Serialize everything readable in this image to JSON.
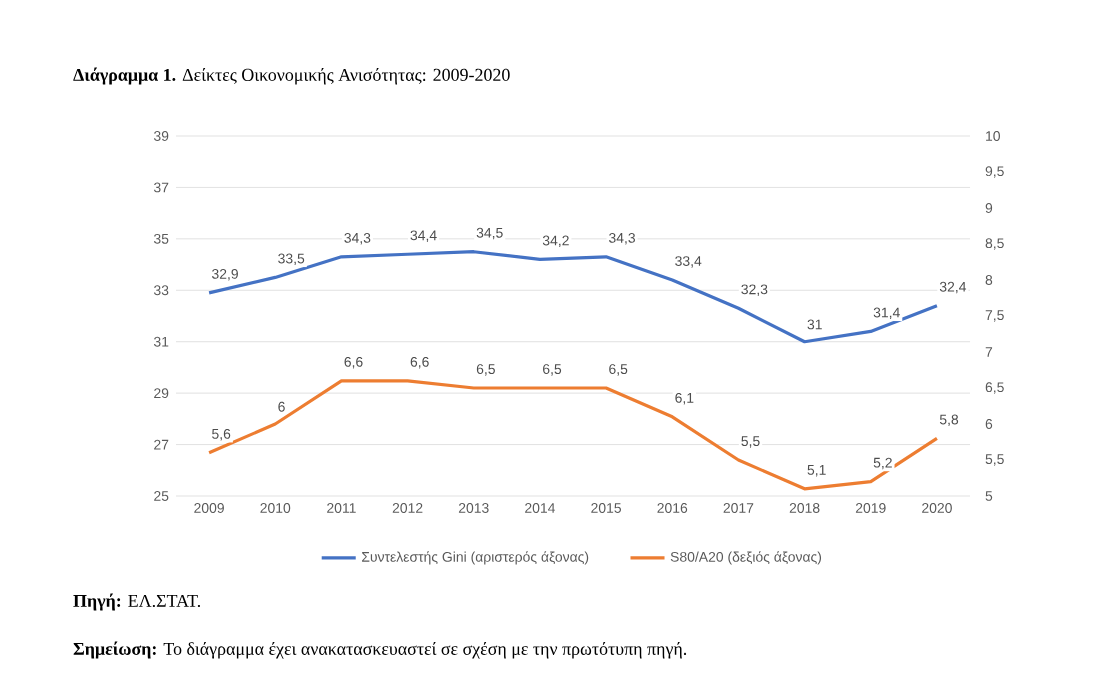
{
  "chart_data": {
    "type": "line",
    "title": "**Διάγραμμα 1.** Δείκτες Οικονομικής Ανισότητας: 2009-2020",
    "annotations": [
      "**Πηγή:** ΕΛ.ΣΤΑΤ.",
      "**Σημείωση:** Το διάγραμμα έχει ανακατασκευαστεί σε σχέση με την πρωτότυπη πηγή."
    ],
    "categories": [
      "2009",
      "2010",
      "2011",
      "2012",
      "2013",
      "2014",
      "2015",
      "2016",
      "2017",
      "2018",
      "2019",
      "2020"
    ],
    "series": [
      {
        "name": "Συντελεστής Gini (αριστερός άξονας)",
        "color": "#4472c4",
        "values": [
          32.9,
          33.5,
          34.3,
          34.4,
          34.5,
          34.2,
          34.3,
          33.4,
          32.3,
          31,
          31.4,
          32.4
        ],
        "value_labels": [
          "32,9",
          "33,5",
          "34,3",
          "34,4",
          "34,5",
          "34,2",
          "34,3",
          "33,4",
          "32,3",
          "31",
          "31,4",
          "32,4"
        ]
      },
      {
        "name": "S80/A20 (δεξιός άξονας)",
        "color": "#ed7d31",
        "axis": "y2",
        "values": [
          5.6,
          6,
          6.6,
          6.6,
          6.5,
          6.5,
          6.5,
          6.1,
          5.5,
          5.1,
          5.2,
          5.8
        ],
        "value_labels": [
          "5,6",
          "6",
          "6,6",
          "6,6",
          "6,5",
          "6,5",
          "6,5",
          "6,1",
          "5,5",
          "5,1",
          "5,2",
          "5,8"
        ]
      }
    ],
    "ylim": [
      25,
      39
    ],
    "yticks": [
      25,
      27,
      29,
      31,
      33,
      35,
      37,
      39
    ],
    "y2lim": [
      5,
      10
    ],
    "y2ticks": [
      5,
      {
        "value": 5.5,
        "label": "5,5"
      },
      6,
      {
        "value": 6.5,
        "label": "6,5"
      },
      7,
      {
        "value": 7.5,
        "label": "7,5"
      },
      8,
      {
        "value": 8.5,
        "label": "8,5"
      },
      9,
      {
        "value": 9.5,
        "label": "9,5"
      },
      10
    ],
    "grid": "y",
    "legend": "bottom"
  }
}
